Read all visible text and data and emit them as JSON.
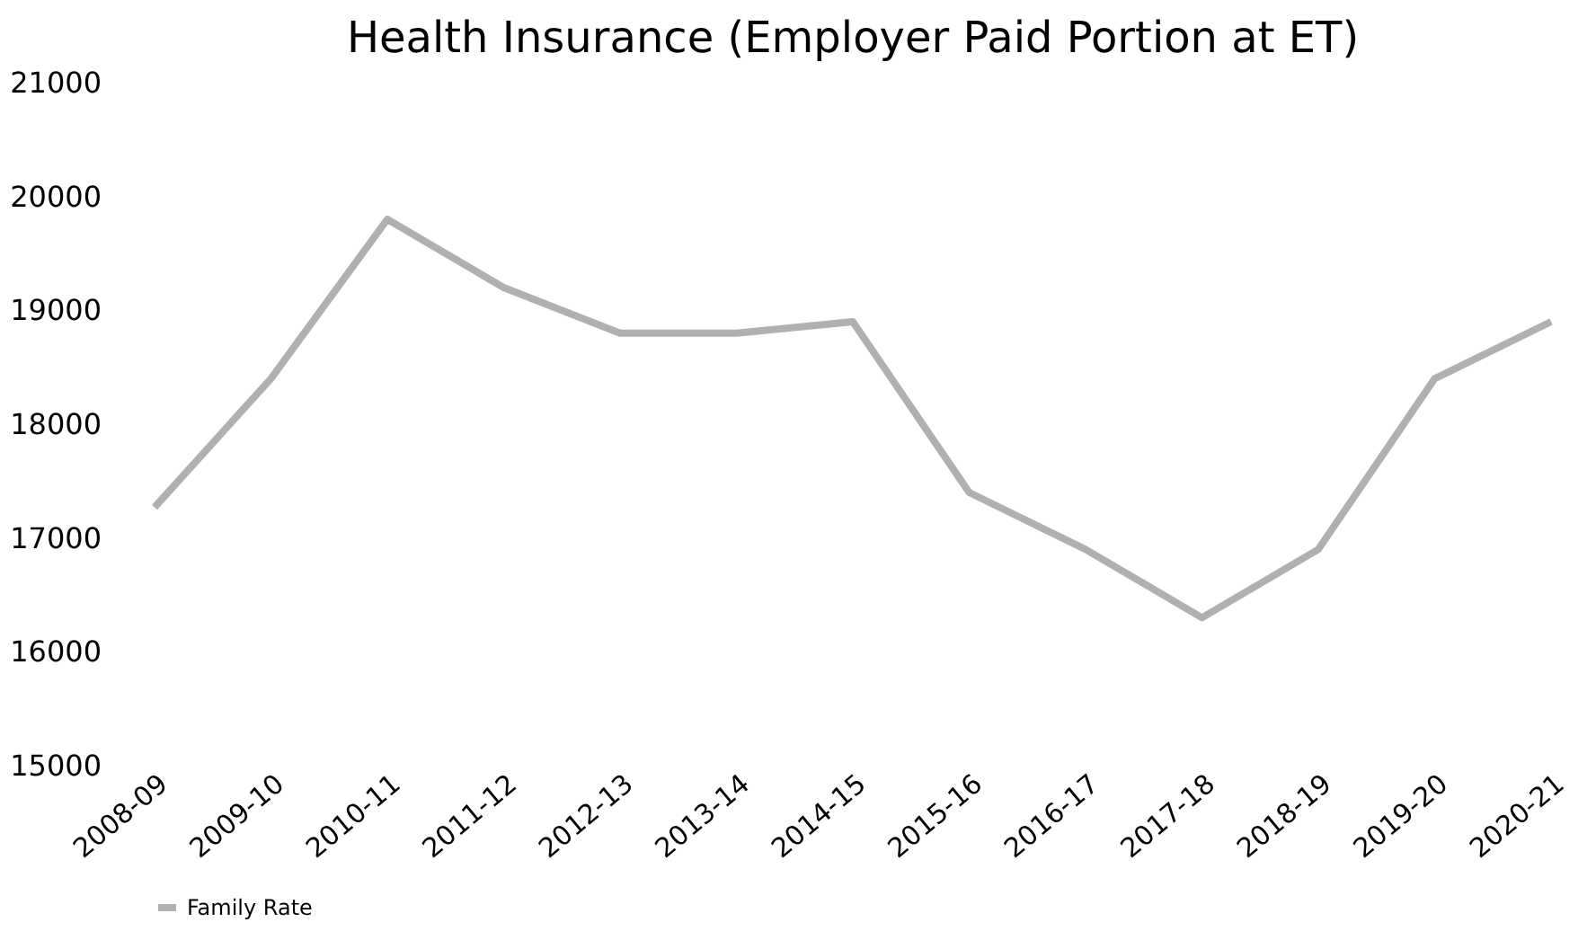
{
  "chart_data": {
    "type": "line",
    "title": "Health Insurance (Employer Paid Portion at ET)",
    "categories": [
      "2008-09",
      "2009-10",
      "2010-11",
      "2011-12",
      "2012-13",
      "2013-14",
      "2014-15",
      "2015-16",
      "2016-17",
      "2017-18",
      "2018-19",
      "2019-20",
      "2020-21"
    ],
    "series": [
      {
        "name": "Family Rate",
        "color": "#b0b0b0",
        "values": [
          17270,
          18400,
          19800,
          19200,
          18800,
          18800,
          18900,
          17400,
          16900,
          16300,
          16900,
          18400,
          18900
        ]
      }
    ],
    "ylim": [
      15000,
      21000
    ],
    "yticks": [
      15000,
      16000,
      17000,
      18000,
      19000,
      20000,
      21000
    ],
    "grid": false,
    "legend": "bottom",
    "marker": "none",
    "line_style": "solid"
  }
}
